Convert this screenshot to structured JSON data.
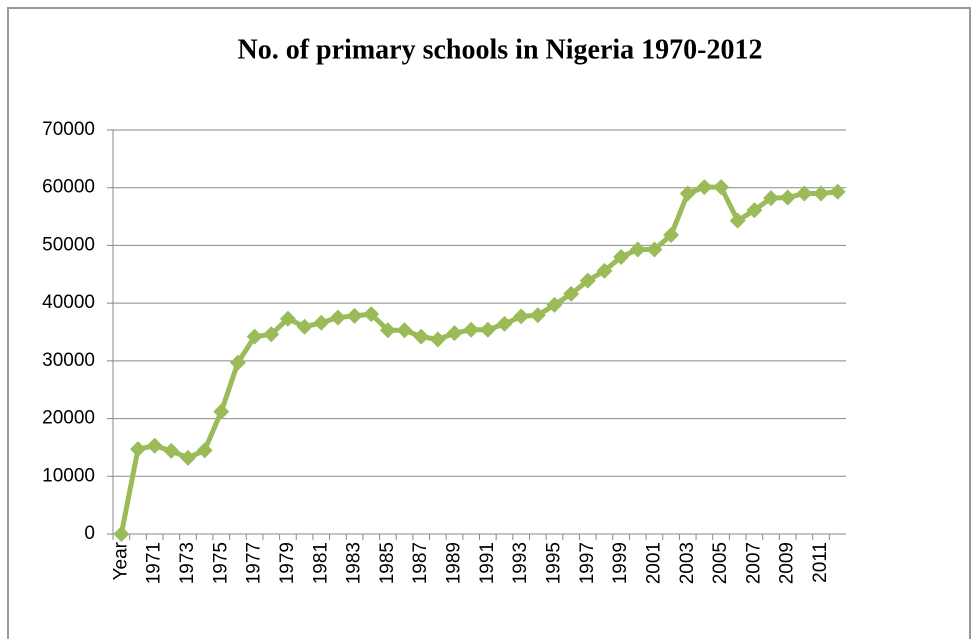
{
  "chart_data": {
    "type": "line",
    "title": "No. of primary schools in Nigeria 1970-2012",
    "categories": [
      "Year",
      null,
      "1971",
      null,
      "1973",
      null,
      "1975",
      null,
      "1977",
      null,
      "1979",
      null,
      "1981",
      null,
      "1983",
      null,
      "1985",
      null,
      "1987",
      null,
      "1989",
      null,
      "1991",
      null,
      "1993",
      null,
      "1995",
      null,
      "1997",
      null,
      "1999",
      null,
      "2001",
      null,
      "2003",
      null,
      "2005",
      null,
      "2007",
      null,
      "2009",
      null,
      "2011",
      null
    ],
    "values": [
      0,
      14700,
      15300,
      14400,
      13200,
      14500,
      21200,
      29700,
      34200,
      34600,
      37300,
      35900,
      36600,
      37500,
      37800,
      38100,
      35300,
      35300,
      34200,
      33700,
      34800,
      35400,
      35400,
      36400,
      37700,
      37900,
      39700,
      41600,
      43900,
      45600,
      48000,
      49300,
      49300,
      51800,
      59000,
      60100,
      60100,
      54300,
      56100,
      58200,
      58300,
      59000,
      59000,
      59300
    ],
    "color": "#9bbb59",
    "ylim": [
      0,
      70000
    ],
    "yticks": [
      0,
      10000,
      20000,
      30000,
      40000,
      50000,
      60000,
      70000
    ],
    "grid": true
  }
}
